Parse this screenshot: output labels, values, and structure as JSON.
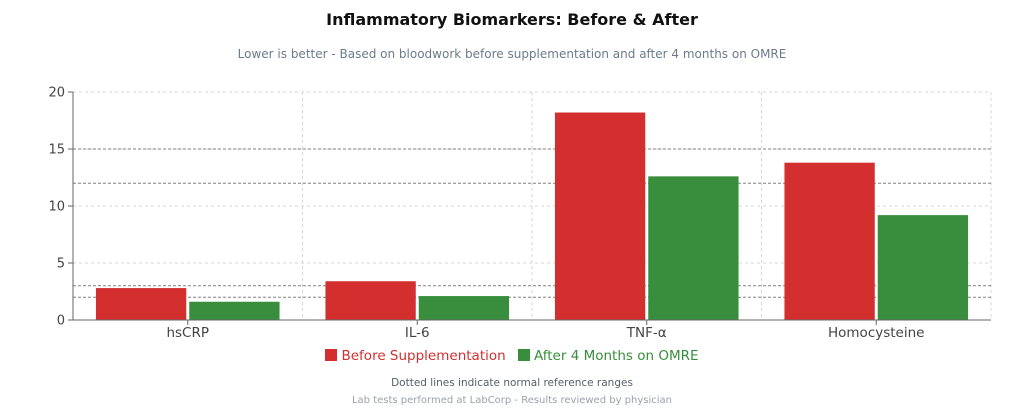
{
  "chart_data": {
    "type": "bar",
    "title": "Inflammatory Biomarkers: Before & After",
    "subtitle": "Lower is better - Based on bloodwork before supplementation and after 4 months on OMRE",
    "categories": [
      "hsCRP",
      "IL-6",
      "TNF-α",
      "Homocysteine"
    ],
    "series": [
      {
        "name": "Before Supplementation",
        "color": "#d32f2f",
        "values": [
          2.8,
          3.4,
          18.2,
          13.8
        ]
      },
      {
        "name": "After 4 Months on OMRE",
        "color": "#388e3c",
        "values": [
          1.6,
          2.1,
          12.6,
          9.2
        ]
      }
    ],
    "reference_lines": [
      15,
      12,
      3,
      2
    ],
    "ylim": [
      0,
      20
    ],
    "yticks": [
      0,
      5,
      10,
      15,
      20
    ],
    "xlabel": "",
    "ylabel": "",
    "grid": true,
    "legend_position": "bottom",
    "footnote": "Dotted lines indicate normal reference ranges",
    "credit": "Lab tests performed at LabCorp - Results reviewed by physician"
  }
}
